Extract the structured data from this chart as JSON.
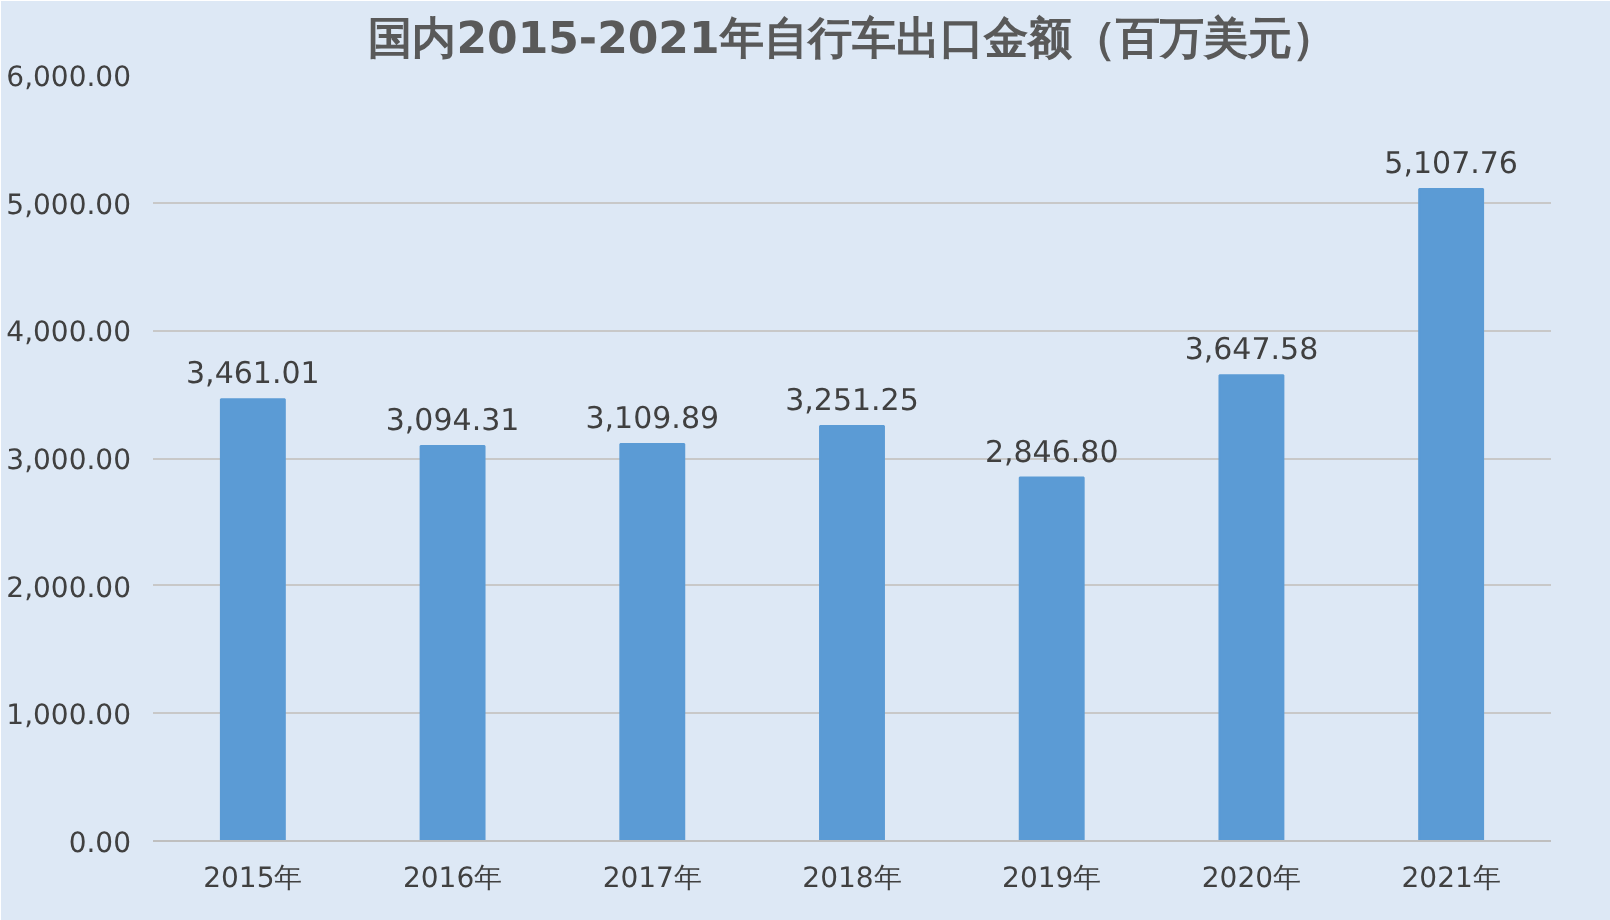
{
  "chart_data": {
    "type": "bar",
    "title": "国内2015-2021年自行车出口金额（百万美元）",
    "categories": [
      "2015年",
      "2016年",
      "2017年",
      "2018年",
      "2019年",
      "2020年",
      "2021年"
    ],
    "values": [
      3461.01,
      3094.31,
      3109.89,
      3251.25,
      2846.8,
      3647.58,
      5107.76
    ],
    "value_labels": [
      "3,461.01",
      "3,094.31",
      "3,109.89",
      "3,251.25",
      "2,846.80",
      "3,647.58",
      "5,107.76"
    ],
    "color": "#5b9bd5",
    "ylim": [
      0,
      6000
    ],
    "yticks": [
      {
        "value": 0,
        "label": "0.00"
      },
      {
        "value": 1000,
        "label": "1,000.00"
      },
      {
        "value": 2000,
        "label": "2,000.00"
      },
      {
        "value": 3000,
        "label": "3,000.00"
      },
      {
        "value": 4000,
        "label": "4,000.00"
      },
      {
        "value": 5000,
        "label": "5,000.00"
      },
      {
        "value": 6000,
        "label": "6,000.00"
      }
    ],
    "grid": "y"
  }
}
